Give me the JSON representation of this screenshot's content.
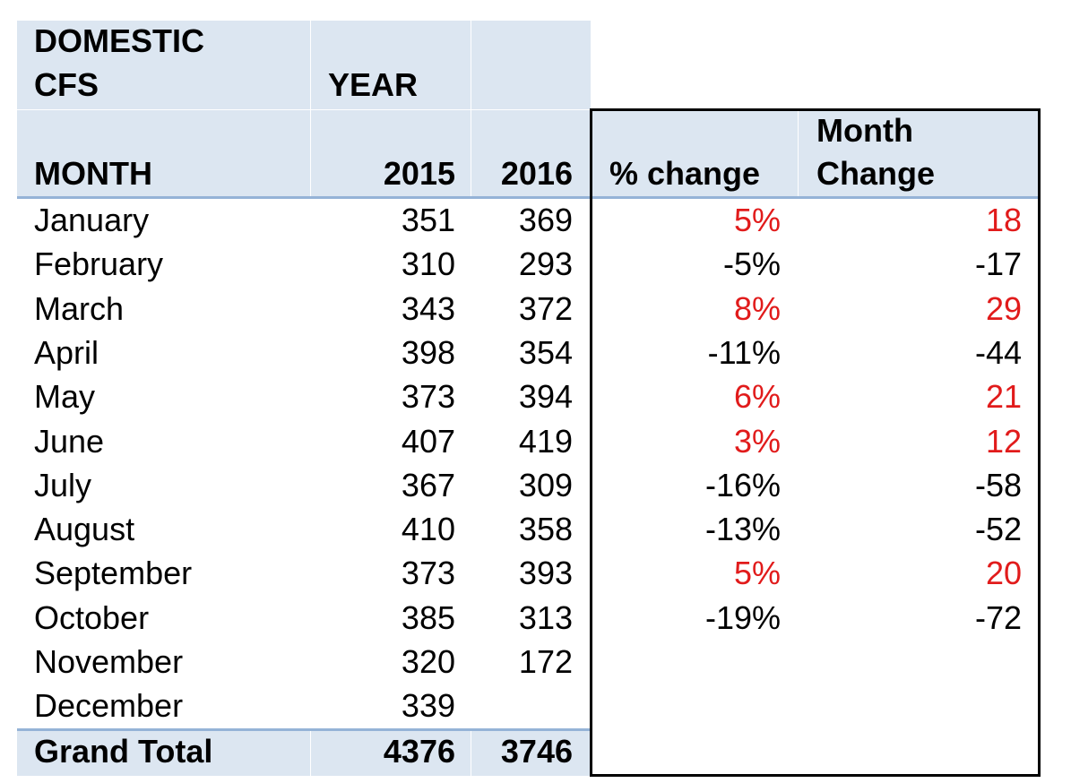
{
  "header": {
    "title_line1": "DOMESTIC",
    "title_line2": "CFS",
    "year_label": "YEAR",
    "month_label": "MONTH",
    "col_2015": "2015",
    "col_2016": "2016",
    "pct_change": "% change",
    "month_change_line1": "Month",
    "month_change_line2": "Change"
  },
  "rows": [
    {
      "month": "January",
      "y2015": "351",
      "y2016": "369",
      "pct": "5%",
      "chg": "18",
      "pos": true
    },
    {
      "month": "February",
      "y2015": "310",
      "y2016": "293",
      "pct": "-5%",
      "chg": "-17",
      "pos": false
    },
    {
      "month": "March",
      "y2015": "343",
      "y2016": "372",
      "pct": "8%",
      "chg": "29",
      "pos": true
    },
    {
      "month": "April",
      "y2015": "398",
      "y2016": "354",
      "pct": "-11%",
      "chg": "-44",
      "pos": false
    },
    {
      "month": "May",
      "y2015": "373",
      "y2016": "394",
      "pct": "6%",
      "chg": "21",
      "pos": true
    },
    {
      "month": "June",
      "y2015": "407",
      "y2016": "419",
      "pct": "3%",
      "chg": "12",
      "pos": true
    },
    {
      "month": "July",
      "y2015": "367",
      "y2016": "309",
      "pct": "-16%",
      "chg": "-58",
      "pos": false
    },
    {
      "month": "August",
      "y2015": "410",
      "y2016": "358",
      "pct": "-13%",
      "chg": "-52",
      "pos": false
    },
    {
      "month": "September",
      "y2015": "373",
      "y2016": "393",
      "pct": "5%",
      "chg": "20",
      "pos": true
    },
    {
      "month": "October",
      "y2015": "385",
      "y2016": "313",
      "pct": "-19%",
      "chg": "-72",
      "pos": false
    },
    {
      "month": "November",
      "y2015": "320",
      "y2016": "172",
      "pct": "",
      "chg": "",
      "pos": false
    },
    {
      "month": "December",
      "y2015": "339",
      "y2016": "",
      "pct": "",
      "chg": "",
      "pos": false
    }
  ],
  "total": {
    "label": "Grand Total",
    "y2015": "4376",
    "y2016": "3746"
  },
  "colors": {
    "header_bg": "#dce6f1",
    "positive": "#e11b1b",
    "rule": "#95b3d7"
  }
}
